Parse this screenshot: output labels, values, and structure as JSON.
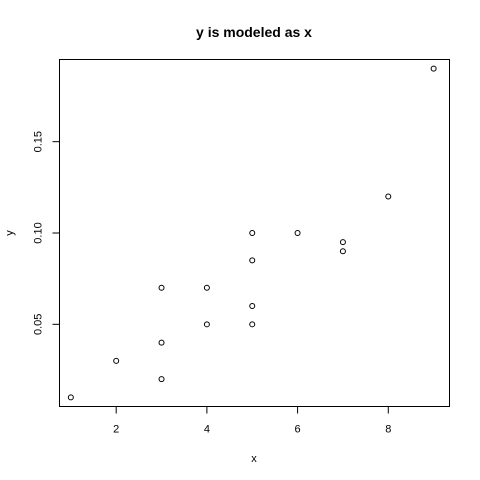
{
  "chart_data": {
    "type": "scatter",
    "title": "y is modeled as x",
    "xlabel": "x",
    "ylabel": "y",
    "xlim": [
      0.75,
      9.35
    ],
    "ylim": [
      0.005,
      0.195
    ],
    "x_ticks": [
      2,
      4,
      6,
      8
    ],
    "x_tick_labels": [
      "2",
      "4",
      "6",
      "8"
    ],
    "y_ticks": [
      0.05,
      0.1,
      0.15
    ],
    "y_tick_labels": [
      "0.05",
      "0.10",
      "0.15"
    ],
    "grid": false,
    "points": [
      {
        "x": 1,
        "y": 0.01
      },
      {
        "x": 2,
        "y": 0.03
      },
      {
        "x": 3,
        "y": 0.02
      },
      {
        "x": 3,
        "y": 0.04
      },
      {
        "x": 3,
        "y": 0.07
      },
      {
        "x": 4,
        "y": 0.05
      },
      {
        "x": 4,
        "y": 0.07
      },
      {
        "x": 5,
        "y": 0.05
      },
      {
        "x": 5,
        "y": 0.06
      },
      {
        "x": 5,
        "y": 0.085
      },
      {
        "x": 5,
        "y": 0.1
      },
      {
        "x": 6,
        "y": 0.1
      },
      {
        "x": 7,
        "y": 0.09
      },
      {
        "x": 7,
        "y": 0.095
      },
      {
        "x": 8,
        "y": 0.12
      },
      {
        "x": 9,
        "y": 0.19
      }
    ]
  }
}
